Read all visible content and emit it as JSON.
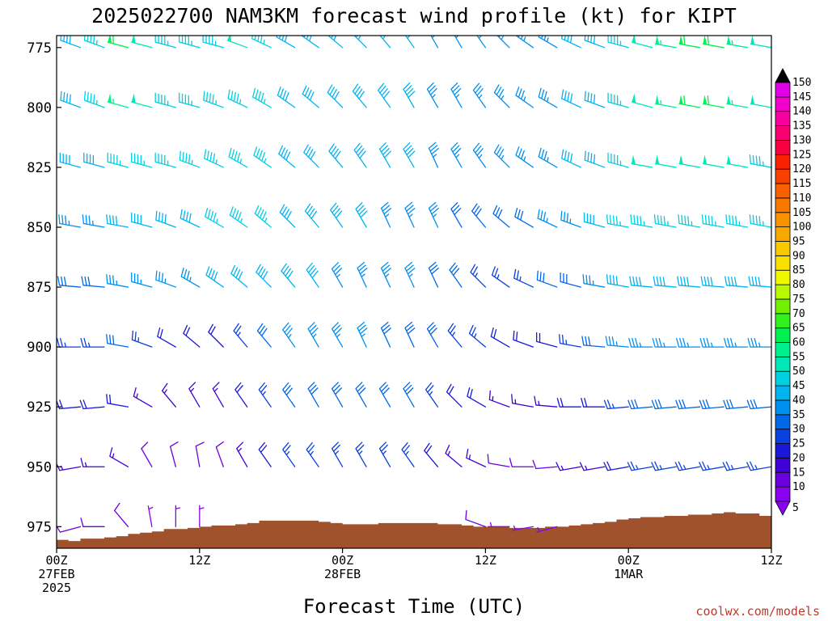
{
  "chart_data": {
    "type": "wind-barb time-height profile",
    "title": "2025022700 NAM3KM forecast wind profile (kt) for KIPT",
    "xlabel": "Forecast Time (UTC)",
    "ylabel": "",
    "credit": "coolwx.com/models",
    "units": "kt",
    "x_range_hours": [
      0,
      60
    ],
    "y_range_hPa": [
      770,
      984
    ],
    "y_ticks": [
      775,
      800,
      825,
      850,
      875,
      900,
      925,
      950,
      975
    ],
    "x_ticks": [
      {
        "hour": 0,
        "lines": [
          "00Z",
          "27FEB",
          "2025"
        ]
      },
      {
        "hour": 12,
        "lines": [
          "12Z"
        ]
      },
      {
        "hour": 24,
        "lines": [
          "00Z",
          "28FEB"
        ]
      },
      {
        "hour": 36,
        "lines": [
          "12Z"
        ]
      },
      {
        "hour": 48,
        "lines": [
          "00Z",
          "1MAR"
        ]
      },
      {
        "hour": 60,
        "lines": [
          "12Z"
        ]
      }
    ],
    "colorbar": {
      "levels": [
        5,
        10,
        15,
        20,
        25,
        30,
        35,
        40,
        45,
        50,
        55,
        60,
        65,
        70,
        75,
        80,
        85,
        90,
        95,
        100,
        105,
        110,
        115,
        120,
        125,
        130,
        135,
        140,
        145,
        150
      ],
      "colors": [
        "#8a00f0",
        "#6a00e0",
        "#4000d8",
        "#1a18d8",
        "#0a40e0",
        "#0068e8",
        "#0090f0",
        "#00b4f0",
        "#00d0e0",
        "#00e8b8",
        "#00f090",
        "#00f050",
        "#30f020",
        "#70f000",
        "#b8f800",
        "#f0f800",
        "#f8e000",
        "#f8c800",
        "#f8a800",
        "#f89000",
        "#f87800",
        "#f86000",
        "#f84000",
        "#f82000",
        "#f80040",
        "#f80070",
        "#f800a0",
        "#f000c8",
        "#e000e8",
        "#000000"
      ]
    },
    "terrain": {
      "color": "#a0522d",
      "surface_pressure_hPa": [
        [
          0,
          980.5
        ],
        [
          1,
          981
        ],
        [
          2,
          980
        ],
        [
          3,
          980
        ],
        [
          4,
          979.5
        ],
        [
          5,
          979
        ],
        [
          6,
          978
        ],
        [
          7,
          977.5
        ],
        [
          8,
          977
        ],
        [
          9,
          976
        ],
        [
          10,
          976
        ],
        [
          11,
          975.5
        ],
        [
          12,
          975
        ],
        [
          13,
          974.5
        ],
        [
          14,
          974.5
        ],
        [
          15,
          974
        ],
        [
          16,
          973.5
        ],
        [
          17,
          972.5
        ],
        [
          18,
          972.5
        ],
        [
          19,
          972.5
        ],
        [
          20,
          972.5
        ],
        [
          21,
          972.5
        ],
        [
          22,
          973
        ],
        [
          23,
          973.5
        ],
        [
          24,
          974
        ],
        [
          25,
          974
        ],
        [
          26,
          974
        ],
        [
          27,
          973.5
        ],
        [
          28,
          973.5
        ],
        [
          29,
          973.5
        ],
        [
          30,
          973.5
        ],
        [
          31,
          973.5
        ],
        [
          32,
          974
        ],
        [
          33,
          974
        ],
        [
          34,
          974.5
        ],
        [
          35,
          975
        ],
        [
          36,
          975
        ],
        [
          37,
          975
        ],
        [
          38,
          975.5
        ],
        [
          39,
          975.5
        ],
        [
          40,
          975.5
        ],
        [
          41,
          975
        ],
        [
          42,
          975
        ],
        [
          43,
          974.5
        ],
        [
          44,
          974
        ],
        [
          45,
          973.5
        ],
        [
          46,
          973
        ],
        [
          47,
          972
        ],
        [
          48,
          971.5
        ],
        [
          49,
          971
        ],
        [
          50,
          971
        ],
        [
          51,
          970.5
        ],
        [
          52,
          970.5
        ],
        [
          53,
          970
        ],
        [
          54,
          970
        ],
        [
          55,
          969.5
        ],
        [
          56,
          969
        ],
        [
          57,
          969.5
        ],
        [
          58,
          969.5
        ],
        [
          59,
          970.5
        ],
        [
          60,
          970.5
        ]
      ]
    },
    "barbs": {
      "times_hours": [
        0,
        2,
        4,
        6,
        8,
        10,
        12,
        14,
        16,
        18,
        20,
        22,
        24,
        26,
        28,
        30,
        32,
        34,
        36,
        38,
        40,
        42,
        44,
        46,
        48,
        50,
        52,
        54,
        56,
        58,
        60
      ],
      "levels_hPa": [
        775,
        800,
        825,
        850,
        875,
        900,
        925,
        950,
        975
      ],
      "speed_kt_by_level": [
        [
          35,
          40,
          45,
          60,
          50,
          45,
          45,
          45,
          50,
          45,
          40,
          40,
          40,
          40,
          40,
          40,
          35,
          35,
          35,
          35,
          35,
          35,
          40,
          40,
          45,
          50,
          55,
          60,
          60,
          55,
          50
        ],
        [
          40,
          40,
          45,
          55,
          50,
          45,
          45,
          45,
          45,
          45,
          40,
          40,
          40,
          40,
          40,
          40,
          35,
          35,
          35,
          35,
          35,
          35,
          40,
          40,
          45,
          50,
          55,
          60,
          60,
          55,
          50
        ],
        [
          40,
          40,
          40,
          45,
          45,
          45,
          45,
          45,
          45,
          45,
          40,
          40,
          40,
          40,
          40,
          40,
          35,
          35,
          35,
          35,
          35,
          35,
          40,
          40,
          45,
          50,
          50,
          50,
          50,
          50,
          45
        ],
        [
          35,
          35,
          35,
          40,
          40,
          40,
          40,
          45,
          45,
          45,
          40,
          40,
          40,
          40,
          35,
          35,
          35,
          30,
          30,
          30,
          30,
          35,
          35,
          40,
          45,
          45,
          45,
          45,
          45,
          45,
          45
        ],
        [
          30,
          30,
          30,
          35,
          35,
          35,
          35,
          40,
          40,
          40,
          40,
          40,
          35,
          35,
          35,
          35,
          30,
          30,
          25,
          25,
          25,
          30,
          30,
          35,
          40,
          40,
          40,
          40,
          40,
          40,
          40
        ],
        [
          25,
          25,
          25,
          30,
          25,
          20,
          20,
          20,
          25,
          30,
          35,
          35,
          35,
          35,
          30,
          30,
          30,
          25,
          25,
          20,
          20,
          20,
          25,
          30,
          35,
          35,
          35,
          35,
          35,
          35,
          35
        ],
        [
          20,
          20,
          20,
          20,
          15,
          15,
          15,
          15,
          20,
          25,
          30,
          30,
          30,
          30,
          30,
          30,
          25,
          20,
          20,
          15,
          15,
          15,
          20,
          20,
          25,
          30,
          30,
          30,
          30,
          30,
          30
        ],
        [
          15,
          15,
          15,
          15,
          10,
          10,
          10,
          10,
          15,
          20,
          25,
          25,
          25,
          25,
          25,
          25,
          20,
          15,
          15,
          10,
          10,
          10,
          15,
          15,
          20,
          25,
          25,
          25,
          25,
          25,
          25
        ],
        [
          10,
          10,
          10,
          10,
          5,
          5,
          5,
          5,
          10,
          15,
          20,
          20,
          20,
          20,
          20,
          20,
          15,
          10,
          10,
          5,
          5,
          5,
          10,
          10,
          15,
          20,
          20,
          20,
          20,
          20,
          20
        ]
      ],
      "direction_deg_by_level": [
        [
          290,
          290,
          290,
          285,
          285,
          285,
          285,
          285,
          290,
          295,
          300,
          305,
          310,
          315,
          320,
          325,
          330,
          330,
          325,
          315,
          305,
          300,
          295,
          290,
          285,
          285,
          280,
          280,
          280,
          280,
          280
        ],
        [
          290,
          290,
          290,
          285,
          285,
          285,
          285,
          290,
          295,
          300,
          305,
          310,
          315,
          320,
          325,
          330,
          330,
          330,
          325,
          315,
          305,
          300,
          295,
          290,
          285,
          285,
          280,
          280,
          280,
          280,
          280
        ],
        [
          285,
          285,
          285,
          285,
          285,
          285,
          290,
          295,
          300,
          305,
          310,
          315,
          320,
          325,
          330,
          330,
          335,
          330,
          325,
          315,
          305,
          300,
          295,
          290,
          285,
          280,
          280,
          280,
          280,
          280,
          280
        ],
        [
          280,
          280,
          280,
          280,
          285,
          290,
          295,
          300,
          305,
          310,
          315,
          320,
          325,
          330,
          335,
          335,
          335,
          330,
          320,
          310,
          300,
          295,
          290,
          285,
          280,
          280,
          280,
          280,
          280,
          280,
          280
        ],
        [
          275,
          275,
          275,
          280,
          285,
          290,
          300,
          305,
          310,
          315,
          320,
          325,
          330,
          335,
          335,
          335,
          335,
          325,
          315,
          305,
          295,
          290,
          285,
          280,
          280,
          275,
          275,
          275,
          275,
          275,
          275
        ],
        [
          270,
          270,
          270,
          280,
          290,
          300,
          310,
          315,
          320,
          320,
          325,
          330,
          330,
          335,
          335,
          335,
          330,
          320,
          310,
          300,
          290,
          285,
          280,
          275,
          275,
          270,
          270,
          270,
          270,
          270,
          270
        ],
        [
          265,
          265,
          265,
          280,
          300,
          320,
          330,
          330,
          325,
          325,
          325,
          330,
          330,
          330,
          330,
          330,
          325,
          315,
          300,
          290,
          280,
          275,
          270,
          270,
          265,
          265,
          265,
          265,
          265,
          265,
          265
        ],
        [
          260,
          260,
          270,
          300,
          330,
          345,
          350,
          340,
          330,
          325,
          325,
          325,
          330,
          330,
          330,
          325,
          320,
          310,
          295,
          280,
          270,
          265,
          260,
          260,
          260,
          260,
          260,
          260,
          260,
          260,
          260
        ],
        [
          255,
          255,
          270,
          320,
          350,
          360,
          360,
          350,
          335,
          330,
          325,
          325,
          325,
          325,
          325,
          320,
          315,
          305,
          290,
          270,
          260,
          255,
          255,
          255,
          255,
          255,
          255,
          255,
          255,
          255,
          255
        ]
      ]
    }
  }
}
